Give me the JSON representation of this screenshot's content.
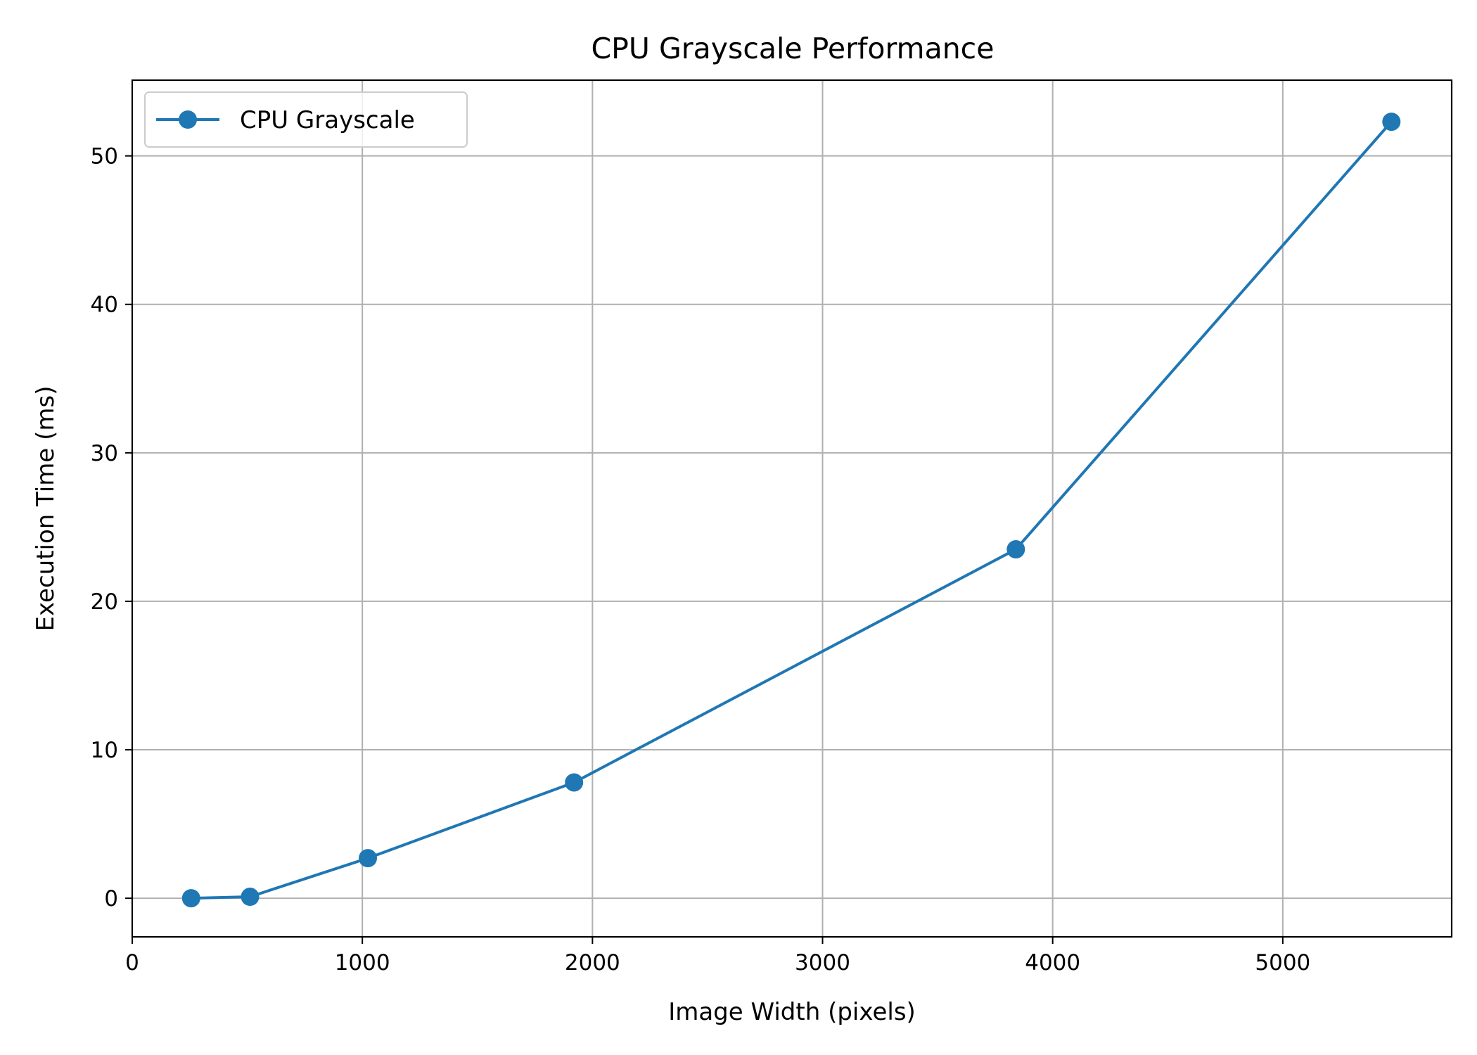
{
  "chart_data": {
    "type": "line",
    "title": "CPU Grayscale Performance",
    "xlabel": "Image Width (pixels)",
    "ylabel": "Execution Time (ms)",
    "xlim": [
      0,
      5734
    ],
    "ylim": [
      -2.6,
      55.1
    ],
    "xticks": [
      0,
      1000,
      2000,
      3000,
      4000,
      5000
    ],
    "yticks": [
      0,
      10,
      20,
      30,
      40,
      50
    ],
    "grid": true,
    "legend": {
      "placement": "top-left",
      "entries": [
        "CPU Grayscale"
      ]
    },
    "series": [
      {
        "name": "CPU Grayscale",
        "color": "#1f77b4",
        "marker": "circle",
        "x": [
          256,
          512,
          1024,
          1920,
          3840,
          5472
        ],
        "y": [
          0.0,
          0.1,
          2.7,
          7.8,
          23.5,
          52.3
        ]
      }
    ]
  }
}
